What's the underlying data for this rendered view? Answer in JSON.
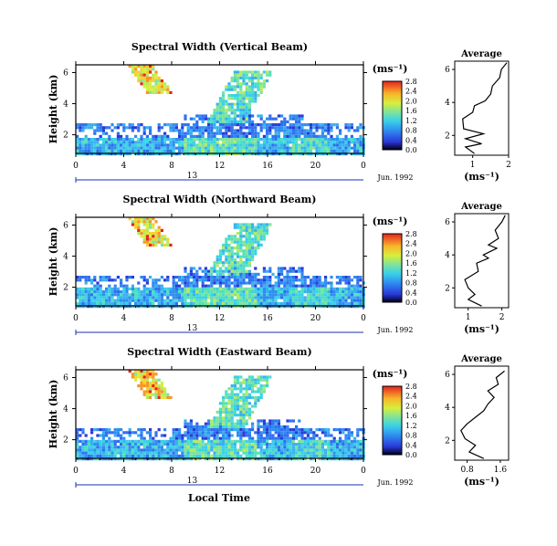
{
  "chart_data": [
    {
      "type": "heatmap",
      "title": "Spectral Width (Vertical Beam)",
      "ylabel": "Height (km)",
      "y_ticks": [
        "2",
        "4",
        "6"
      ],
      "x_ticks": [
        "0",
        "4",
        "8",
        "12",
        "16",
        "20",
        "0"
      ],
      "date_day": "13",
      "date_label": "Jun. 1992",
      "xlim": [
        0,
        24
      ],
      "ylim": [
        0.8,
        6.5
      ],
      "colorbar": {
        "unit": "(ms⁻¹)",
        "ticks": [
          "0.0",
          "0.4",
          "0.8",
          "1.2",
          "1.6",
          "2.0",
          "2.4",
          "2.8"
        ]
      },
      "average": {
        "title": "Average",
        "xlabel": "(ms⁻¹)",
        "x_ticks": [
          "1",
          "2"
        ],
        "y_ticks": [
          "2",
          "4",
          "6"
        ],
        "xlim": [
          0.5,
          2.0
        ],
        "profile": [
          [
            1.05,
            0.9
          ],
          [
            0.8,
            1.3
          ],
          [
            1.25,
            1.5
          ],
          [
            0.8,
            1.8
          ],
          [
            1.3,
            2.1
          ],
          [
            0.75,
            2.4
          ],
          [
            0.72,
            3.0
          ],
          [
            1.0,
            3.4
          ],
          [
            1.05,
            3.8
          ],
          [
            1.35,
            4.1
          ],
          [
            1.5,
            4.5
          ],
          [
            1.55,
            5.0
          ],
          [
            1.75,
            5.5
          ],
          [
            1.8,
            6.0
          ],
          [
            1.95,
            6.4
          ]
        ]
      }
    },
    {
      "type": "heatmap",
      "title": "Spectral Width (Northward Beam)",
      "ylabel": "Height (km)",
      "y_ticks": [
        "2",
        "4",
        "6"
      ],
      "x_ticks": [
        "0",
        "4",
        "8",
        "12",
        "16",
        "20",
        "0"
      ],
      "date_day": "13",
      "date_label": "Jun. 1992",
      "xlim": [
        0,
        24
      ],
      "ylim": [
        0.8,
        6.5
      ],
      "colorbar": {
        "unit": "(ms⁻¹)",
        "ticks": [
          "0.0",
          "0.4",
          "0.8",
          "1.2",
          "1.6",
          "2.0",
          "2.4",
          "2.8"
        ]
      },
      "average": {
        "title": "Average",
        "xlabel": "(ms⁻¹)",
        "x_ticks": [
          "1",
          "2"
        ],
        "y_ticks": [
          "2",
          "4",
          "6"
        ],
        "xlim": [
          0.6,
          2.2
        ],
        "profile": [
          [
            1.4,
            0.9
          ],
          [
            1.0,
            1.3
          ],
          [
            1.2,
            1.6
          ],
          [
            1.0,
            2.0
          ],
          [
            0.9,
            2.5
          ],
          [
            1.3,
            3.0
          ],
          [
            1.25,
            3.5
          ],
          [
            1.6,
            3.8
          ],
          [
            1.45,
            4.0
          ],
          [
            1.85,
            4.4
          ],
          [
            1.6,
            4.6
          ],
          [
            1.9,
            5.0
          ],
          [
            1.8,
            5.5
          ],
          [
            2.0,
            6.0
          ],
          [
            2.1,
            6.4
          ]
        ]
      }
    },
    {
      "type": "heatmap",
      "title": "Spectral Width (Eastward Beam)",
      "ylabel": "Height (km)",
      "y_ticks": [
        "2",
        "4",
        "6"
      ],
      "x_ticks": [
        "0",
        "4",
        "8",
        "12",
        "16",
        "20",
        "0"
      ],
      "date_day": "13",
      "date_label": "Jun. 1992",
      "xlabel": "Local Time",
      "xlim": [
        0,
        24
      ],
      "ylim": [
        0.8,
        6.5
      ],
      "colorbar": {
        "unit": "(ms⁻¹)",
        "ticks": [
          "0.0",
          "0.4",
          "0.8",
          "1.2",
          "1.6",
          "2.0",
          "2.4",
          "2.8"
        ]
      },
      "average": {
        "title": "Average",
        "xlabel": "(ms⁻¹)",
        "x_ticks": [
          "0.8",
          "1.6"
        ],
        "y_ticks": [
          "2",
          "4",
          "6"
        ],
        "xlim": [
          0.5,
          1.8
        ],
        "profile": [
          [
            1.2,
            0.9
          ],
          [
            0.85,
            1.3
          ],
          [
            1.0,
            1.7
          ],
          [
            0.75,
            2.1
          ],
          [
            0.65,
            2.6
          ],
          [
            0.8,
            3.0
          ],
          [
            1.0,
            3.4
          ],
          [
            1.2,
            3.8
          ],
          [
            1.3,
            4.2
          ],
          [
            1.45,
            4.6
          ],
          [
            1.3,
            5.0
          ],
          [
            1.55,
            5.4
          ],
          [
            1.5,
            5.8
          ],
          [
            1.7,
            6.2
          ]
        ]
      }
    }
  ]
}
